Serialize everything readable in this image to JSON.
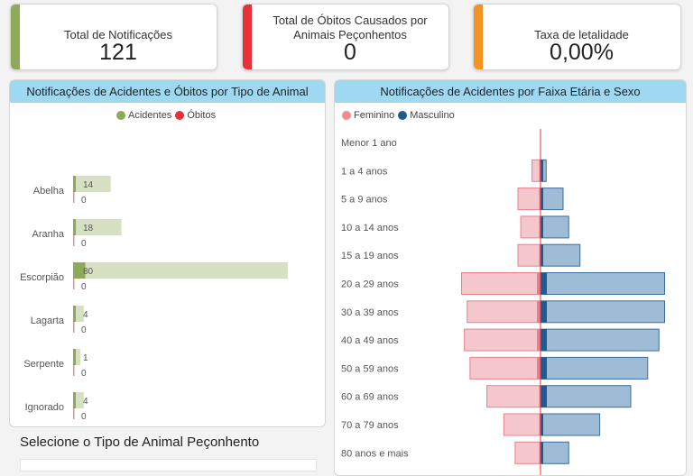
{
  "kpis": [
    {
      "label": "Total de Notificações",
      "value": "121",
      "color": "#8fa95a"
    },
    {
      "label": "Total de Óbitos Causados por Animais Peçonhentos",
      "value": "0",
      "color": "#e8303a"
    },
    {
      "label": "Taxa de letalidade",
      "value": "0,00%",
      "color": "#f39322"
    }
  ],
  "left_panel": {
    "title": "Notificações de Acidentes e Óbitos por Tipo de Animal",
    "legend": [
      {
        "label": "Acidentes",
        "color": "#8fa95a"
      },
      {
        "label": "Óbitos",
        "color": "#e8303a"
      }
    ]
  },
  "right_panel": {
    "title": "Notificações de Acidentes por Faixa Etária e Sexo",
    "legend": [
      {
        "label": "Feminino",
        "color": "#f08a96"
      },
      {
        "label": "Masculino",
        "color": "#1f5a92"
      }
    ]
  },
  "selector": {
    "title": "Selecione o Tipo de Animal Peçonhento"
  },
  "chart_data": [
    {
      "type": "bar",
      "orientation": "horizontal",
      "title": "Notificações de Acidentes e Óbitos por Tipo de Animal",
      "categories": [
        "Abelha",
        "Aranha",
        "Escorpião",
        "Lagarta",
        "Serpente",
        "Ignorado"
      ],
      "series": [
        {
          "name": "Acidentes",
          "values": [
            14,
            18,
            80,
            4,
            1,
            4
          ]
        },
        {
          "name": "Óbitos",
          "values": [
            0,
            0,
            0,
            0,
            0,
            0
          ]
        }
      ],
      "xlim": [
        0,
        80
      ]
    },
    {
      "type": "bar",
      "orientation": "horizontal",
      "subtype": "population-pyramid",
      "title": "Notificações de Acidentes por Faixa Etária e Sexo",
      "categories": [
        "Menor 1 ano",
        "1 a 4 anos",
        "5 a 9 anos",
        "10 a 14 anos",
        "15 a 19 anos",
        "20 a 29 anos",
        "30 a 39 anos",
        "40 a 49 anos",
        "50 a 59 anos",
        "60 a 69 anos",
        "70 a 79 anos",
        "80 anos e mais"
      ],
      "series": [
        {
          "name": "Feminino",
          "values": [
            0,
            1.5,
            4,
            3.5,
            4,
            14,
            13,
            13.5,
            12.5,
            9.5,
            6.5,
            4.5
          ]
        },
        {
          "name": "Masculino",
          "values": [
            0,
            1,
            4,
            5,
            7,
            22,
            22,
            21,
            19,
            16,
            10.5,
            5
          ]
        }
      ],
      "xlim": [
        -15,
        23
      ]
    }
  ]
}
